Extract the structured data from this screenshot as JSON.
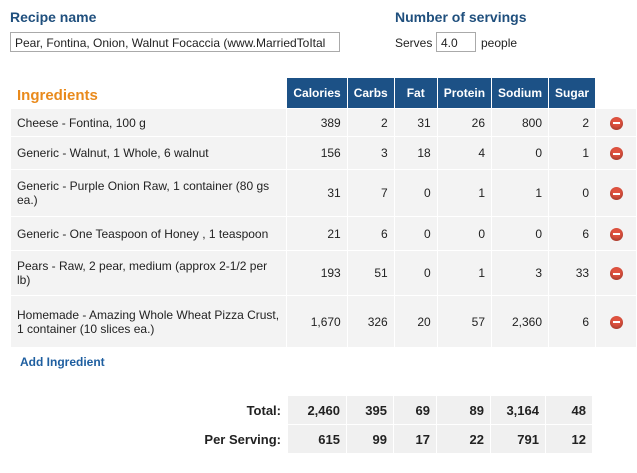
{
  "form": {
    "recipe_name_label": "Recipe name",
    "recipe_name_value": "Pear, Fontina, Onion, Walnut Focaccia (www.MarriedToItal",
    "servings_label": "Number of servings",
    "serves_prefix": "Serves",
    "serves_value": "4.0",
    "serves_suffix": "people"
  },
  "table": {
    "title": "Ingredients",
    "columns": [
      "Calories",
      "Carbs",
      "Fat",
      "Protein",
      "Sodium",
      "Sugar"
    ],
    "rows": [
      [
        "Cheese - Fontina, 100 g",
        "389",
        "2",
        "31",
        "26",
        "800",
        "2"
      ],
      [
        "Generic - Walnut, 1 Whole, 6 walnut",
        "156",
        "3",
        "18",
        "4",
        "0",
        "1"
      ],
      [
        "Generic - Purple Onion Raw, 1 container (80 gs ea.)",
        "31",
        "7",
        "0",
        "1",
        "1",
        "0"
      ],
      [
        "Generic - One Teaspoon of Honey , 1 teaspoon",
        "21",
        "6",
        "0",
        "0",
        "0",
        "6"
      ],
      [
        "Pears - Raw, 2 pear, medium (approx 2-1/2 per lb)",
        "193",
        "51",
        "0",
        "1",
        "3",
        "33"
      ],
      [
        "Homemade - Amazing Whole Wheat Pizza Crust, 1 container (10 slices ea.)",
        "1,670",
        "326",
        "20",
        "57",
        "2,360",
        "6"
      ]
    ],
    "add_link": "Add Ingredient"
  },
  "totals": {
    "rows": [
      [
        "Total:",
        "2,460",
        "395",
        "69",
        "89",
        "3,164",
        "48"
      ],
      [
        "Per Serving:",
        "615",
        "99",
        "17",
        "22",
        "791",
        "12"
      ]
    ]
  }
}
